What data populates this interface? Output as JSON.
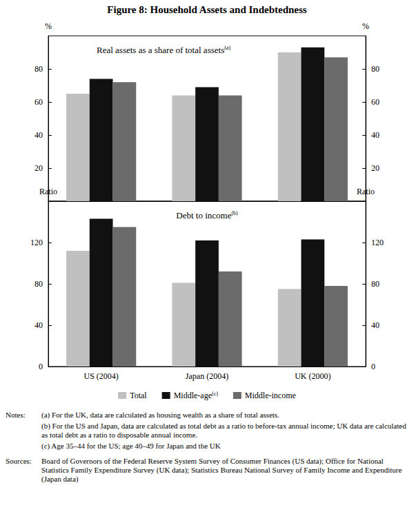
{
  "title": "Figure 8: Household Assets and Indebtedness",
  "chart_data": [
    {
      "type": "bar",
      "title": "Real assets as a share of total assets(a)",
      "y_label": "%",
      "categories": [
        "US (2004)",
        "Japan (2004)",
        "UK (2000)"
      ],
      "series": [
        {
          "name": "Total",
          "color": "#c0c0c0",
          "values": [
            65,
            64,
            90
          ]
        },
        {
          "name": "Middle-age(c)",
          "color": "#111111",
          "values": [
            74,
            69,
            93
          ]
        },
        {
          "name": "Middle-income",
          "color": "#6b6b6b",
          "values": [
            72,
            64,
            87
          ]
        }
      ],
      "ylim": [
        0,
        100
      ],
      "yticks": [
        20,
        40,
        60,
        80
      ],
      "grid": false,
      "tick_labels": "y"
    },
    {
      "type": "bar",
      "title": "Debt to income(b)",
      "y_label": "Ratio",
      "categories": [
        "US (2004)",
        "Japan (2004)",
        "UK (2000)"
      ],
      "series": [
        {
          "name": "Total",
          "color": "#c0c0c0",
          "values": [
            112,
            81,
            75
          ]
        },
        {
          "name": "Middle-age(c)",
          "color": "#111111",
          "values": [
            143,
            122,
            123
          ]
        },
        {
          "name": "Middle-income",
          "color": "#6b6b6b",
          "values": [
            135,
            92,
            78
          ]
        }
      ],
      "ylim": [
        0,
        160
      ],
      "yticks": [
        0,
        40,
        80,
        120
      ],
      "grid": false,
      "legend": "bottom"
    }
  ],
  "notes_label": "Notes:",
  "notes": [
    "(a) For the UK, data are calculated as housing wealth as a share of total assets.",
    "(b) For the US and Japan, data are calculated as total debt as a ratio to before-tax annual income; UK data are calculated as total debt as a ratio to disposable annual income.",
    "(c) Age 35–44 for the US; age 40–49 for Japan and the UK"
  ],
  "sources_label": "Sources:",
  "sources": "Board of Governors of the Federal Reserve System Survey of Consumer Finances (US data); Office for National Statistics Family Expenditure Survey (UK data); Statistics Bureau National Survey of Family Income and Expenditure (Japan data)"
}
